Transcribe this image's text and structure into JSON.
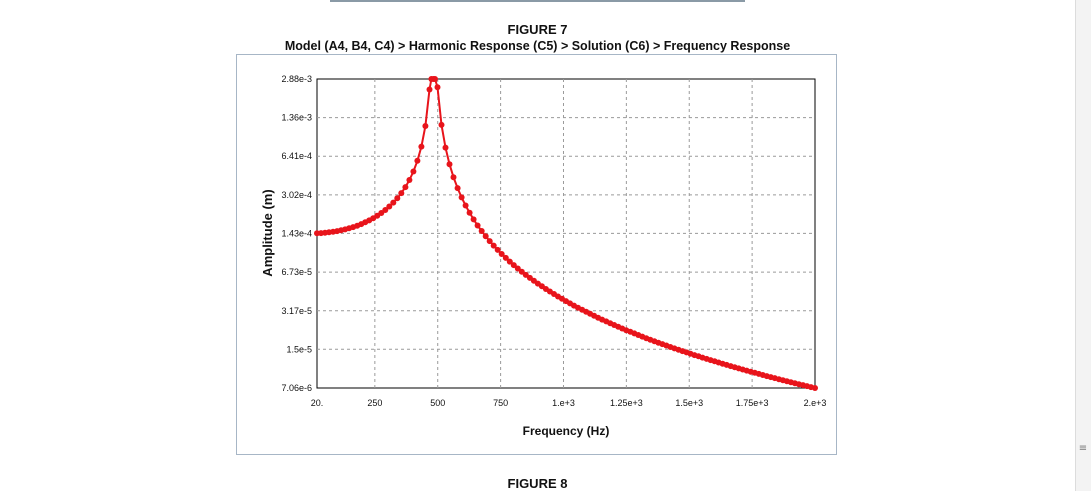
{
  "figure7_title": "FIGURE 7",
  "figure7_subtitle": "Model (A4, B4, C4) > Harmonic Response (C5) > Solution (C6) > Frequency Response",
  "figure8_title": "FIGURE 8",
  "scrollbar": {
    "grip_glyph": "≡"
  },
  "chart_data": {
    "type": "line",
    "xlabel": "Frequency (Hz)",
    "ylabel": "Amplitude (m)",
    "x_scale": "linear",
    "y_scale": "log",
    "xlim": [
      20,
      2000
    ],
    "ylim": [
      7.06e-06,
      0.00288
    ],
    "x_ticks": [
      20,
      250,
      500,
      750,
      1000,
      1250,
      1500,
      1750,
      2000
    ],
    "x_tick_labels": [
      "20.",
      "250",
      "500",
      "750",
      "1.e+3",
      "1.25e+3",
      "1.5e+3",
      "1.75e+3",
      "2.e+3"
    ],
    "y_ticks": [
      7.06e-06,
      1.5e-05,
      3.17e-05,
      6.73e-05,
      0.000143,
      0.000302,
      0.000641,
      0.00136,
      0.00288
    ],
    "y_tick_labels": [
      "7.06e-6",
      "1.5e-5",
      "3.17e-5",
      "6.73e-5",
      "1.43e-4",
      "3.02e-4",
      "6.41e-4",
      "1.36e-3",
      "2.88e-3"
    ],
    "grid": true,
    "series_color": "#e8141b",
    "resonance_hz": 482,
    "peak_amplitude": 0.00288,
    "static_amplitude": 0.000143,
    "end_amplitude": 7.06e-06,
    "point_count": 125
  }
}
